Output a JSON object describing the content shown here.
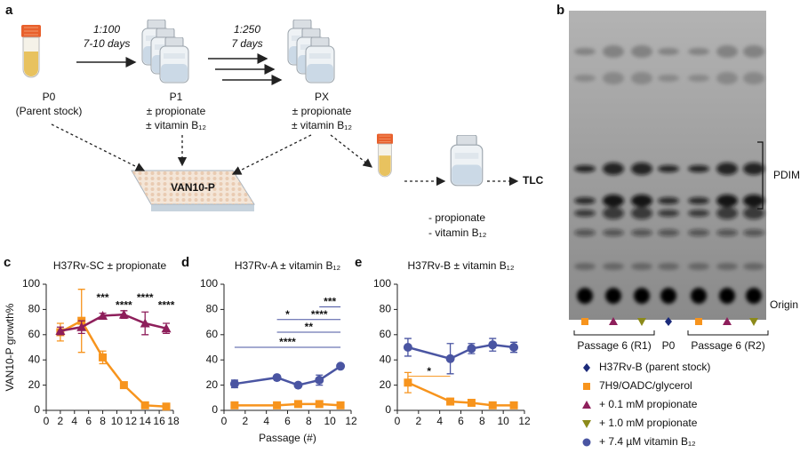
{
  "panel_a": {
    "label": "a",
    "step1": {
      "ratio": "1:100",
      "duration": "7-10 days"
    },
    "step2": {
      "ratio": "1:250",
      "duration": "7 days"
    },
    "p0": {
      "name": "P0",
      "note": "(Parent stock)"
    },
    "p1": {
      "name": "P1",
      "conditions": [
        "± propionate",
        "± vitamin B₁₂"
      ]
    },
    "px": {
      "name": "PX",
      "conditions": [
        "± propionate",
        "± vitamin B₁₂"
      ]
    },
    "plate": "VAN10-P",
    "readout": "TLC",
    "tlc_conditions": [
      "- propionate",
      "- vitamin B₁₂"
    ]
  },
  "panel_b": {
    "label": "b",
    "band_label": "PDIM",
    "origin_label": "Origin",
    "lane_groups": [
      "Passage 6 (R1)",
      "P0",
      "Passage 6 (R2)"
    ]
  },
  "legend": [
    {
      "label": "H37Rv-B (parent stock)",
      "color": "#1b2a7a",
      "marker": "diamond"
    },
    {
      "label": "7H9/OADC/glycerol",
      "color": "#f7941d",
      "marker": "square"
    },
    {
      "label": "+ 0.1 mM propionate",
      "color": "#8e1f5b",
      "marker": "triangle"
    },
    {
      "label": "+ 1.0 mM propionate",
      "color": "#8c8a1a",
      "marker": "triangle-down"
    },
    {
      "label": "+ 7.4 µM vitamin B₁₂",
      "color": "#4a55a2",
      "marker": "circle"
    }
  ],
  "chart_data": [
    {
      "type": "line",
      "label": "c",
      "title": "H37Rv-SC ± propionate",
      "y_label": "VAN10-P growth%",
      "xlim": [
        0,
        18
      ],
      "xticks": [
        0,
        2,
        4,
        6,
        8,
        10,
        12,
        14,
        16,
        18
      ],
      "ylim": [
        0,
        100
      ],
      "yticks": [
        0,
        20,
        40,
        60,
        80,
        100
      ],
      "series": [
        {
          "color": "#f7941d",
          "marker": "square",
          "x": [
            2,
            5,
            8,
            11,
            14,
            17
          ],
          "values": [
            62,
            71,
            42,
            20,
            4,
            3
          ],
          "errors": [
            7,
            25,
            5,
            2,
            1,
            1
          ]
        },
        {
          "color": "#8e1f5b",
          "marker": "triangle",
          "x": [
            2,
            5,
            8,
            11,
            14,
            17
          ],
          "values": [
            63,
            66,
            75,
            76,
            69,
            65
          ],
          "errors": [
            3,
            5,
            2,
            3,
            9,
            4
          ]
        }
      ],
      "annotations": [
        {
          "text": "***",
          "x": [
            8
          ]
        },
        {
          "text": "****",
          "x": [
            11
          ]
        },
        {
          "text": "****",
          "x": [
            14
          ]
        },
        {
          "text": "****",
          "x": [
            17
          ]
        }
      ]
    },
    {
      "type": "line",
      "label": "d",
      "title": "H37Rv-A ± vitamin B₁₂",
      "x_label": "Passage (#)",
      "xlim": [
        0,
        12
      ],
      "xticks": [
        0,
        2,
        4,
        6,
        8,
        10,
        12
      ],
      "ylim": [
        0,
        100
      ],
      "yticks": [
        0,
        20,
        40,
        60,
        80,
        100
      ],
      "series": [
        {
          "color": "#4a55a2",
          "marker": "circle",
          "x": [
            1,
            5,
            7,
            9,
            11
          ],
          "values": [
            21,
            26,
            20,
            24,
            35
          ],
          "errors": [
            3,
            1,
            1,
            4,
            1
          ]
        },
        {
          "color": "#f7941d",
          "marker": "square",
          "x": [
            1,
            5,
            7,
            9,
            11
          ],
          "values": [
            4,
            4,
            5,
            5,
            4
          ],
          "errors": [
            1,
            1,
            1,
            1,
            1
          ]
        }
      ],
      "annotations": [
        {
          "text": "***",
          "x": [
            9,
            11
          ]
        },
        {
          "text": "*",
          "x": [
            5,
            7
          ]
        },
        {
          "text": "****",
          "x": [
            7,
            11
          ]
        },
        {
          "text": "**",
          "x": [
            5,
            11
          ]
        },
        {
          "text": "****",
          "x": [
            1,
            11
          ]
        }
      ]
    },
    {
      "type": "line",
      "label": "e",
      "title": "H37Rv-B ± vitamin B₁₂",
      "xlim": [
        0,
        12
      ],
      "xticks": [
        0,
        2,
        4,
        6,
        8,
        10,
        12
      ],
      "ylim": [
        0,
        100
      ],
      "yticks": [
        0,
        20,
        40,
        60,
        80,
        100
      ],
      "series": [
        {
          "color": "#4a55a2",
          "marker": "circle",
          "x": [
            1,
            5,
            7,
            9,
            11
          ],
          "values": [
            50,
            41,
            49,
            52,
            50
          ],
          "errors": [
            7,
            12,
            4,
            5,
            4
          ]
        },
        {
          "color": "#f7941d",
          "marker": "square",
          "x": [
            1,
            5,
            7,
            9,
            11
          ],
          "values": [
            22,
            7,
            6,
            4,
            4
          ],
          "errors": [
            8,
            1,
            1,
            1,
            1
          ]
        }
      ],
      "annotations": [
        {
          "text": "*",
          "x": [
            1,
            5
          ]
        }
      ]
    }
  ]
}
